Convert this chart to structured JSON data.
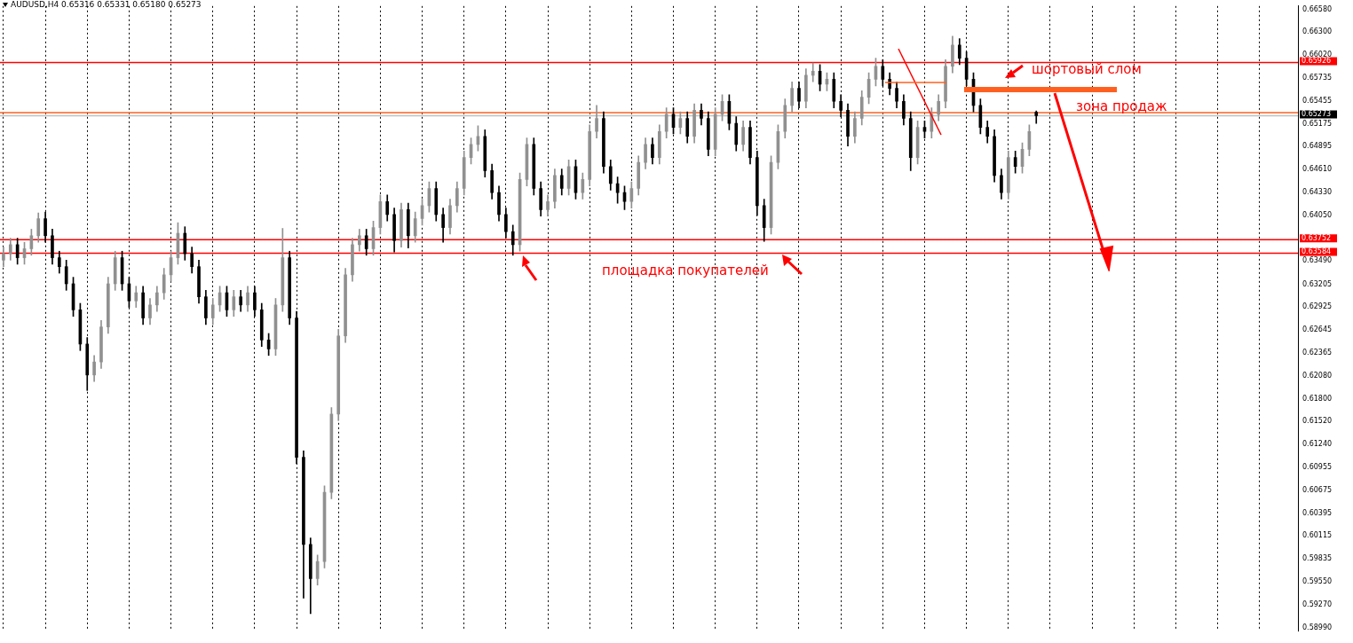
{
  "chart_data": {
    "type": "candlestick",
    "title": "AUDUSD,H4 0.65316 0.65331 0.65180 0.65273",
    "colors": [
      "#909090",
      "#909090",
      "#000000",
      "#909090",
      "#909090",
      "#909090",
      "#000000",
      "#000000",
      "#000000",
      "#000000",
      "#000000",
      "#000000",
      "#000000",
      "#909090",
      "#909090",
      "#909090",
      "#909090",
      "#000000",
      "#000000",
      "#909090",
      "#000000",
      "#909090",
      "#909090",
      "#909090",
      "#909090",
      "#909090",
      "#000000",
      "#000000",
      "#000000",
      "#000000",
      "#909090",
      "#909090",
      "#000000",
      "#909090",
      "#000000",
      "#909090",
      "#000000",
      "#000000",
      "#000000",
      "#909090",
      "#909090",
      "#000000",
      "#000000",
      "#000000",
      "#000000",
      "#909090",
      "#909090",
      "#909090",
      "#909090",
      "#909090",
      "#909090",
      "#909090",
      "#000000",
      "#909090",
      "#909090",
      "#000000",
      "#000000",
      "#909090",
      "#000000",
      "#909090",
      "#909090",
      "#909090",
      "#000000",
      "#000000",
      "#909090",
      "#909090",
      "#909090",
      "#909090",
      "#909090",
      "#000000",
      "#000000",
      "#000000",
      "#000000",
      "#000000",
      "#909090",
      "#909090",
      "#000000",
      "#000000",
      "#909090",
      "#909090",
      "#000000",
      "#909090",
      "#000000",
      "#909090",
      "#909090",
      "#909090",
      "#000000",
      "#000000",
      "#000000",
      "#000000",
      "#909090",
      "#909090",
      "#909090",
      "#000000",
      "#909090",
      "#909090",
      "#000000",
      "#909090",
      "#000000",
      "#909090",
      "#000000",
      "#000000",
      "#909090",
      "#909090",
      "#000000",
      "#000000",
      "#909090",
      "#000000",
      "#000000",
      "#000000",
      "#909090",
      "#909090",
      "#909090",
      "#909090",
      "#000000",
      "#909090",
      "#909090",
      "#000000",
      "#909090",
      "#000000",
      "#000000",
      "#000000",
      "#909090",
      "#909090",
      "#909090",
      "#909090",
      "#000000",
      "#000000",
      "#000000",
      "#000000",
      "#000000",
      "#909090",
      "#000000",
      "#909090",
      "#909090",
      "#909090",
      "#909090",
      "#000000",
      "#000000",
      "#000000",
      "#000000",
      "#000000",
      "#000000",
      "#000000",
      "#909090",
      "#000000",
      "#909090",
      "#909090",
      "#000000",
      null,
      null,
      null,
      null,
      null,
      null,
      null,
      null,
      null,
      null,
      null,
      null,
      null,
      null,
      null,
      null,
      null,
      null,
      null,
      null,
      null,
      null,
      null,
      null,
      null,
      null,
      null,
      null,
      null,
      null,
      null,
      null,
      null,
      null,
      null,
      null,
      null
    ],
    "categories": [
      null,
      null,
      null,
      null,
      null,
      null,
      null,
      null,
      null,
      null,
      null,
      null,
      null,
      null,
      null,
      null,
      null,
      null,
      null,
      null,
      null,
      null,
      null,
      null,
      null,
      null,
      null,
      null,
      null,
      null,
      null,
      null,
      null,
      null,
      null,
      null,
      null,
      null,
      null,
      null,
      null,
      null,
      null,
      null,
      null,
      null,
      null,
      null,
      null,
      null,
      null,
      null,
      null,
      null,
      null,
      null,
      null,
      null,
      null,
      null,
      null,
      null,
      null,
      null,
      null,
      null,
      null,
      null,
      null,
      null,
      null,
      null,
      null,
      null,
      null,
      null,
      null,
      null,
      null,
      null,
      null,
      null,
      null,
      null,
      null,
      null,
      null,
      null,
      null,
      null,
      null,
      null,
      null,
      null,
      null,
      null,
      null,
      null,
      null,
      null,
      null,
      null,
      null,
      null,
      null,
      null,
      null,
      null,
      null,
      null,
      null,
      null,
      null,
      null,
      null,
      null,
      null,
      null,
      null,
      null,
      null,
      null,
      null,
      null,
      null,
      null,
      null,
      null,
      null,
      null,
      null,
      null,
      null,
      null,
      null,
      null,
      null,
      null,
      null,
      null,
      null,
      null,
      null,
      null,
      null,
      null,
      null,
      null,
      null,
      null,
      null,
      null,
      null,
      null,
      null,
      null,
      null,
      null,
      null,
      null,
      null,
      null,
      null,
      null,
      null,
      null,
      null,
      null,
      null,
      null,
      null,
      null,
      null,
      null,
      null,
      null,
      null,
      null,
      null,
      null,
      null,
      null,
      null,
      null,
      null,
      null
    ],
    "ohlc": [
      [
        0.635,
        0.6366,
        0.6342,
        0.6358
      ],
      [
        0.6358,
        0.6377,
        0.635,
        0.6369
      ],
      [
        0.6369,
        0.6377,
        0.6345,
        0.6353
      ],
      [
        0.6353,
        0.6372,
        0.6345,
        0.6364
      ],
      [
        0.6364,
        0.6388,
        0.6356,
        0.638
      ],
      [
        0.638,
        0.6408,
        0.6372,
        0.6401
      ],
      [
        0.6401,
        0.6409,
        0.6372,
        0.638
      ],
      [
        0.638,
        0.6388,
        0.6345,
        0.6353
      ],
      [
        0.6353,
        0.6361,
        0.6334,
        0.6342
      ],
      [
        0.6342,
        0.635,
        0.6313,
        0.6321
      ],
      [
        0.6321,
        0.6329,
        0.6281,
        0.6289
      ],
      [
        0.6289,
        0.6297,
        0.6239,
        0.6247
      ],
      [
        0.6247,
        0.6255,
        0.619,
        0.6209
      ],
      [
        0.6209,
        0.6233,
        0.6201,
        0.6225
      ],
      [
        0.6225,
        0.6276,
        0.6217,
        0.6268
      ],
      [
        0.6268,
        0.6329,
        0.626,
        0.6321
      ],
      [
        0.6321,
        0.6361,
        0.6313,
        0.6353
      ],
      [
        0.6353,
        0.6361,
        0.6313,
        0.6321
      ],
      [
        0.6321,
        0.6329,
        0.6292,
        0.63
      ],
      [
        0.63,
        0.6318,
        0.6292,
        0.631
      ],
      [
        0.631,
        0.6318,
        0.6271,
        0.6279
      ],
      [
        0.6279,
        0.6303,
        0.6271,
        0.6295
      ],
      [
        0.6295,
        0.6318,
        0.6287,
        0.631
      ],
      [
        0.631,
        0.634,
        0.6302,
        0.6332
      ],
      [
        0.6332,
        0.6361,
        0.6324,
        0.6353
      ],
      [
        0.6353,
        0.6396,
        0.6345,
        0.6383
      ],
      [
        0.6383,
        0.6391,
        0.635,
        0.6358
      ],
      [
        0.6358,
        0.6366,
        0.6334,
        0.6342
      ],
      [
        0.6342,
        0.635,
        0.6297,
        0.6305
      ],
      [
        0.6305,
        0.6313,
        0.6271,
        0.6279
      ],
      [
        0.6279,
        0.6303,
        0.6271,
        0.6295
      ],
      [
        0.6295,
        0.6318,
        0.6287,
        0.631
      ],
      [
        0.631,
        0.6318,
        0.6281,
        0.6289
      ],
      [
        0.6289,
        0.6313,
        0.6281,
        0.6305
      ],
      [
        0.6305,
        0.6313,
        0.6287,
        0.6295
      ],
      [
        0.6295,
        0.6318,
        0.6287,
        0.631
      ],
      [
        0.631,
        0.6318,
        0.6281,
        0.6289
      ],
      [
        0.6289,
        0.6297,
        0.6244,
        0.6252
      ],
      [
        0.6252,
        0.626,
        0.6233,
        0.6241
      ],
      [
        0.6241,
        0.6303,
        0.6233,
        0.6295
      ],
      [
        0.6295,
        0.6389,
        0.6287,
        0.6353
      ],
      [
        0.6353,
        0.6361,
        0.6271,
        0.6279
      ],
      [
        0.6279,
        0.6287,
        0.61,
        0.6108
      ],
      [
        0.6108,
        0.6116,
        0.5935,
        0.6001
      ],
      [
        0.6001,
        0.6009,
        0.5916,
        0.5959
      ],
      [
        0.5959,
        0.5988,
        0.5951,
        0.598
      ],
      [
        0.598,
        0.6073,
        0.5972,
        0.6065
      ],
      [
        0.6065,
        0.6169,
        0.6057,
        0.6161
      ],
      [
        0.6161,
        0.6265,
        0.6153,
        0.6257
      ],
      [
        0.6257,
        0.634,
        0.6249,
        0.6332
      ],
      [
        0.6332,
        0.6377,
        0.6324,
        0.6369
      ],
      [
        0.6369,
        0.6388,
        0.6361,
        0.638
      ],
      [
        0.638,
        0.6388,
        0.6356,
        0.6364
      ],
      [
        0.6364,
        0.6398,
        0.6356,
        0.639
      ],
      [
        0.639,
        0.643,
        0.6382,
        0.6422
      ],
      [
        0.6422,
        0.643,
        0.6398,
        0.6406
      ],
      [
        0.6406,
        0.6414,
        0.636,
        0.6374
      ],
      [
        0.6374,
        0.642,
        0.6366,
        0.6412
      ],
      [
        0.6412,
        0.642,
        0.6365,
        0.638
      ],
      [
        0.638,
        0.6409,
        0.6372,
        0.6401
      ],
      [
        0.6401,
        0.6425,
        0.6393,
        0.6417
      ],
      [
        0.6417,
        0.6446,
        0.6409,
        0.6438
      ],
      [
        0.6438,
        0.6446,
        0.6398,
        0.6406
      ],
      [
        0.6406,
        0.6414,
        0.6372,
        0.639
      ],
      [
        0.639,
        0.6425,
        0.6382,
        0.6417
      ],
      [
        0.6417,
        0.6446,
        0.6409,
        0.6438
      ],
      [
        0.6438,
        0.6484,
        0.643,
        0.6476
      ],
      [
        0.6476,
        0.65,
        0.6468,
        0.6492
      ],
      [
        0.6492,
        0.6515,
        0.6484,
        0.6502
      ],
      [
        0.6502,
        0.651,
        0.6452,
        0.646
      ],
      [
        0.646,
        0.6468,
        0.6425,
        0.6433
      ],
      [
        0.6433,
        0.6441,
        0.6398,
        0.6406
      ],
      [
        0.6406,
        0.6414,
        0.6377,
        0.6385
      ],
      [
        0.6385,
        0.6393,
        0.6356,
        0.6369
      ],
      [
        0.6369,
        0.6457,
        0.6361,
        0.6449
      ],
      [
        0.6449,
        0.65,
        0.6441,
        0.6492
      ],
      [
        0.6492,
        0.65,
        0.643,
        0.6438
      ],
      [
        0.6438,
        0.6446,
        0.6404,
        0.6412
      ],
      [
        0.6412,
        0.643,
        0.6404,
        0.6422
      ],
      [
        0.6422,
        0.6462,
        0.6414,
        0.6454
      ],
      [
        0.6454,
        0.6462,
        0.643,
        0.6438
      ],
      [
        0.6438,
        0.6473,
        0.643,
        0.6465
      ],
      [
        0.6465,
        0.6473,
        0.6425,
        0.6433
      ],
      [
        0.6433,
        0.6457,
        0.6425,
        0.6449
      ],
      [
        0.6449,
        0.6516,
        0.6441,
        0.6508
      ],
      [
        0.6508,
        0.654,
        0.65,
        0.6524
      ],
      [
        0.6524,
        0.6532,
        0.6457,
        0.6465
      ],
      [
        0.6465,
        0.6473,
        0.6436,
        0.6444
      ],
      [
        0.6444,
        0.6452,
        0.642,
        0.6433
      ],
      [
        0.6433,
        0.6441,
        0.6412,
        0.6422
      ],
      [
        0.6422,
        0.6446,
        0.6414,
        0.6438
      ],
      [
        0.6438,
        0.6478,
        0.643,
        0.647
      ],
      [
        0.647,
        0.65,
        0.6462,
        0.6492
      ],
      [
        0.6492,
        0.65,
        0.6468,
        0.6476
      ],
      [
        0.6476,
        0.6516,
        0.6468,
        0.6508
      ],
      [
        0.6508,
        0.6537,
        0.65,
        0.6529
      ],
      [
        0.6529,
        0.6537,
        0.6505,
        0.6513
      ],
      [
        0.6513,
        0.6532,
        0.6505,
        0.6524
      ],
      [
        0.6524,
        0.6532,
        0.6494,
        0.6502
      ],
      [
        0.6502,
        0.6542,
        0.6494,
        0.6534
      ],
      [
        0.6534,
        0.6542,
        0.6516,
        0.6524
      ],
      [
        0.6524,
        0.6532,
        0.6478,
        0.6486
      ],
      [
        0.6486,
        0.6537,
        0.6478,
        0.6529
      ],
      [
        0.6529,
        0.6553,
        0.6521,
        0.6545
      ],
      [
        0.6545,
        0.6553,
        0.651,
        0.6518
      ],
      [
        0.6518,
        0.6526,
        0.6484,
        0.6492
      ],
      [
        0.6492,
        0.6521,
        0.6484,
        0.6513
      ],
      [
        0.6513,
        0.6521,
        0.6468,
        0.6476
      ],
      [
        0.6476,
        0.6484,
        0.6405,
        0.6417
      ],
      [
        0.6417,
        0.6425,
        0.6373,
        0.639
      ],
      [
        0.639,
        0.6478,
        0.6382,
        0.647
      ],
      [
        0.647,
        0.6516,
        0.6462,
        0.6508
      ],
      [
        0.6508,
        0.6548,
        0.65,
        0.654
      ],
      [
        0.654,
        0.6569,
        0.6532,
        0.6561
      ],
      [
        0.6561,
        0.6569,
        0.6537,
        0.6545
      ],
      [
        0.6545,
        0.6585,
        0.6537,
        0.6577
      ],
      [
        0.6577,
        0.6592,
        0.6569,
        0.6582
      ],
      [
        0.6582,
        0.659,
        0.6558,
        0.6566
      ],
      [
        0.6566,
        0.658,
        0.6558,
        0.6572
      ],
      [
        0.6572,
        0.658,
        0.6537,
        0.6545
      ],
      [
        0.6545,
        0.6553,
        0.6526,
        0.6534
      ],
      [
        0.6534,
        0.6542,
        0.649,
        0.6502
      ],
      [
        0.6502,
        0.6532,
        0.6494,
        0.6524
      ],
      [
        0.6524,
        0.6558,
        0.6516,
        0.655
      ],
      [
        0.655,
        0.658,
        0.6542,
        0.6572
      ],
      [
        0.6572,
        0.6598,
        0.6564,
        0.6588
      ],
      [
        0.6588,
        0.6596,
        0.6564,
        0.6572
      ],
      [
        0.6572,
        0.658,
        0.6553,
        0.6561
      ],
      [
        0.6561,
        0.6569,
        0.6537,
        0.6545
      ],
      [
        0.6545,
        0.6553,
        0.6516,
        0.6524
      ],
      [
        0.6524,
        0.6532,
        0.646,
        0.6476
      ],
      [
        0.6476,
        0.6521,
        0.6468,
        0.6513
      ],
      [
        0.6513,
        0.6521,
        0.65,
        0.6508
      ],
      [
        0.6508,
        0.6537,
        0.65,
        0.6529
      ],
      [
        0.6529,
        0.6553,
        0.6521,
        0.6545
      ],
      [
        0.6545,
        0.6596,
        0.6537,
        0.6588
      ],
      [
        0.6588,
        0.6625,
        0.658,
        0.6614
      ],
      [
        0.6614,
        0.6622,
        0.659,
        0.6598
      ],
      [
        0.6598,
        0.6606,
        0.6564,
        0.6572
      ],
      [
        0.6572,
        0.658,
        0.6532,
        0.654
      ],
      [
        0.654,
        0.6548,
        0.6505,
        0.6513
      ],
      [
        0.6513,
        0.6521,
        0.6494,
        0.6502
      ],
      [
        0.6502,
        0.651,
        0.6446,
        0.6454
      ],
      [
        0.6454,
        0.6462,
        0.6425,
        0.6433
      ],
      [
        0.6433,
        0.6484,
        0.6425,
        0.6476
      ],
      [
        0.6476,
        0.6484,
        0.6457,
        0.6465
      ],
      [
        0.6465,
        0.6494,
        0.6457,
        0.6486
      ],
      [
        0.6486,
        0.6516,
        0.6478,
        0.6508
      ],
      [
        0.65316,
        0.65331,
        0.6518,
        0.65273
      ],
      null,
      null,
      null,
      null,
      null,
      null,
      null,
      null,
      null,
      null,
      null,
      null,
      null,
      null,
      null,
      null,
      null,
      null,
      null,
      null,
      null,
      null,
      null,
      null,
      null,
      null,
      null,
      null,
      null,
      null,
      null,
      null,
      null,
      null,
      null,
      null,
      null
    ],
    "ylim": [
      0.5895,
      0.6662
    ],
    "yticks": [
      {
        "value": 0.6658,
        "label": "0.66580"
      },
      {
        "value": 0.663,
        "label": "0.66300"
      },
      {
        "value": 0.6602,
        "label": "0.66020"
      },
      0.65735,
      0.65455,
      0.65175,
      0.64895,
      {
        "value": 0.6461,
        "label": "0.64610"
      },
      {
        "value": 0.6433,
        "label": "0.64330"
      },
      {
        "value": 0.6405,
        "label": "0.64050"
      },
      {
        "value": 0.6349,
        "label": "0.63490"
      },
      0.63205,
      0.62925,
      0.62645,
      0.62365,
      {
        "value": 0.6208,
        "label": "0.62080"
      },
      {
        "value": 0.618,
        "label": "0.61800"
      },
      {
        "value": 0.6152,
        "label": "0.61520"
      },
      {
        "value": 0.6124,
        "label": "0.61240"
      },
      0.60955,
      0.60675,
      0.60395,
      0.60115,
      0.59835,
      {
        "value": 0.5955,
        "label": "0.59550"
      },
      {
        "value": 0.5927,
        "label": "0.59270"
      },
      {
        "value": 0.5899,
        "label": "0.58990"
      }
    ],
    "tick_labels": "y",
    "grid": "x",
    "ref_lines": [
      {
        "axis": "y",
        "value": 0.65926,
        "label": "0.65926",
        "color": "#ff0000"
      },
      {
        "axis": "y",
        "value": 0.63752,
        "label": "0.63752",
        "color": "#ff0000"
      },
      {
        "axis": "y",
        "value": 0.63584,
        "label": "0.63584",
        "color": "#ff0000"
      },
      {
        "axis": "y",
        "value": 0.6531,
        "label": null,
        "color": "#ff6020"
      },
      {
        "axis": "y",
        "value": 0.65273,
        "label": "0.65273",
        "color": "#c0c0c0"
      }
    ],
    "annotations": [
      "шортовый слом",
      "зона продаж",
      "площадка покупателей"
    ]
  }
}
